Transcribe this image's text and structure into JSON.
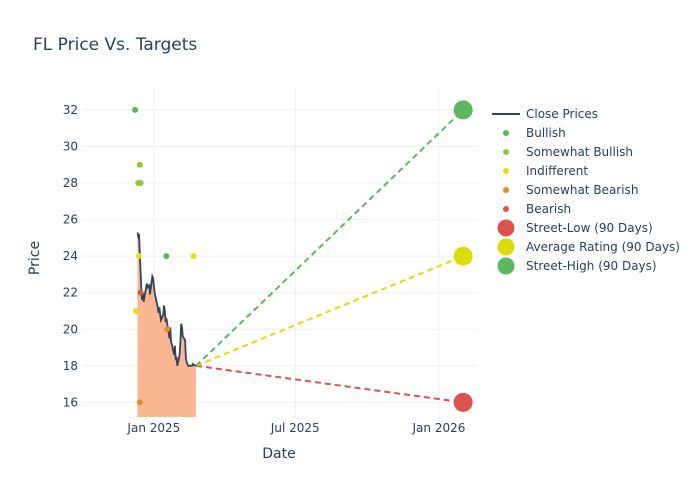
{
  "chart_data": {
    "type": "line",
    "title": "FL Price Vs. Targets",
    "xlabel": "Date",
    "ylabel": "Price",
    "x_range": [
      "2024-10-01",
      "2026-02-20"
    ],
    "ylim": [
      15.2,
      33.2
    ],
    "x_ticks": [
      {
        "date": "2025-01-01",
        "label": "Jan 2025"
      },
      {
        "date": "2025-07-01",
        "label": "Jul 2025"
      },
      {
        "date": "2026-01-01",
        "label": "Jan 2026"
      }
    ],
    "y_ticks": [
      16,
      18,
      20,
      22,
      24,
      26,
      28,
      30,
      32
    ],
    "grid": true,
    "legend_position": "right",
    "close_prices": {
      "name": "Close Prices",
      "color": "#34425c",
      "fill_color": "#f9b893",
      "x": [
        "2024-12-11",
        "2024-12-12",
        "2024-12-13",
        "2024-12-16",
        "2024-12-17",
        "2024-12-18",
        "2024-12-19",
        "2024-12-20",
        "2024-12-23",
        "2024-12-24",
        "2024-12-26",
        "2024-12-27",
        "2024-12-30",
        "2024-12-31",
        "2025-01-02",
        "2025-01-03",
        "2025-01-06",
        "2025-01-07",
        "2025-01-08",
        "2025-01-10",
        "2025-01-13",
        "2025-01-14",
        "2025-01-15",
        "2025-01-16",
        "2025-01-17",
        "2025-01-21",
        "2025-01-22",
        "2025-01-23",
        "2025-01-24",
        "2025-01-27",
        "2025-01-28",
        "2025-01-29",
        "2025-01-30",
        "2025-01-31",
        "2025-02-03",
        "2025-02-04",
        "2025-02-05",
        "2025-02-06",
        "2025-02-07",
        "2025-02-10",
        "2025-02-11",
        "2025-02-12",
        "2025-02-13",
        "2025-02-14",
        "2025-02-18",
        "2025-02-19",
        "2025-02-20",
        "2025-02-21",
        "2025-02-24"
      ],
      "y": [
        25.3,
        25.1,
        25.2,
        22.1,
        21.6,
        22.0,
        21.5,
        21.8,
        22.5,
        22.3,
        22.4,
        21.9,
        22.9,
        22.8,
        22.0,
        21.8,
        21.2,
        20.9,
        21.2,
        20.5,
        20.8,
        21.3,
        21.0,
        20.4,
        20.6,
        19.5,
        20.1,
        19.3,
        19.2,
        18.6,
        19.1,
        18.3,
        18.5,
        18.0,
        18.6,
        19.3,
        20.3,
        20.1,
        19.6,
        19.4,
        18.4,
        18.2,
        18.1,
        18.0,
        18.0,
        18.0,
        18.1,
        18.05,
        18.0
      ]
    },
    "ratings": [
      {
        "name": "Bullish",
        "color": "#5cb85c",
        "points": [
          {
            "x": "2024-12-08",
            "y": 32
          },
          {
            "x": "2025-01-17",
            "y": 24
          }
        ]
      },
      {
        "name": "Somewhat Bullish",
        "color": "#8dc63f",
        "points": [
          {
            "x": "2024-12-12",
            "y": 28
          },
          {
            "x": "2024-12-14",
            "y": 29
          },
          {
            "x": "2024-12-15",
            "y": 28
          }
        ]
      },
      {
        "name": "Indifferent",
        "color": "#e8df0a",
        "points": [
          {
            "x": "2024-12-09",
            "y": 21
          },
          {
            "x": "2024-12-13",
            "y": 24
          },
          {
            "x": "2025-02-21",
            "y": 24
          }
        ]
      },
      {
        "name": "Somewhat Bearish",
        "color": "#e08e2b",
        "points": [
          {
            "x": "2024-12-14",
            "y": 16
          },
          {
            "x": "2025-01-18",
            "y": 20
          }
        ]
      },
      {
        "name": "Bearish",
        "color": "#d9534f",
        "points": [
          {
            "x": "2024-12-15",
            "y": 22
          }
        ]
      }
    ],
    "targets": [
      {
        "name": "Street-Low (90 Days)",
        "color": "#d9534f",
        "from": {
          "x": "2025-02-24",
          "y": 18.0
        },
        "to": {
          "x": "2026-02-01",
          "y": 16
        }
      },
      {
        "name": "Average Rating (90 Days)",
        "color": "#dcdc0a",
        "from": {
          "x": "2025-02-24",
          "y": 18.0
        },
        "to": {
          "x": "2026-02-01",
          "y": 24
        }
      },
      {
        "name": "Street-High (90 Days)",
        "color": "#5cb85c",
        "from": {
          "x": "2025-02-24",
          "y": 18.0
        },
        "to": {
          "x": "2026-02-01",
          "y": 32
        }
      }
    ]
  }
}
